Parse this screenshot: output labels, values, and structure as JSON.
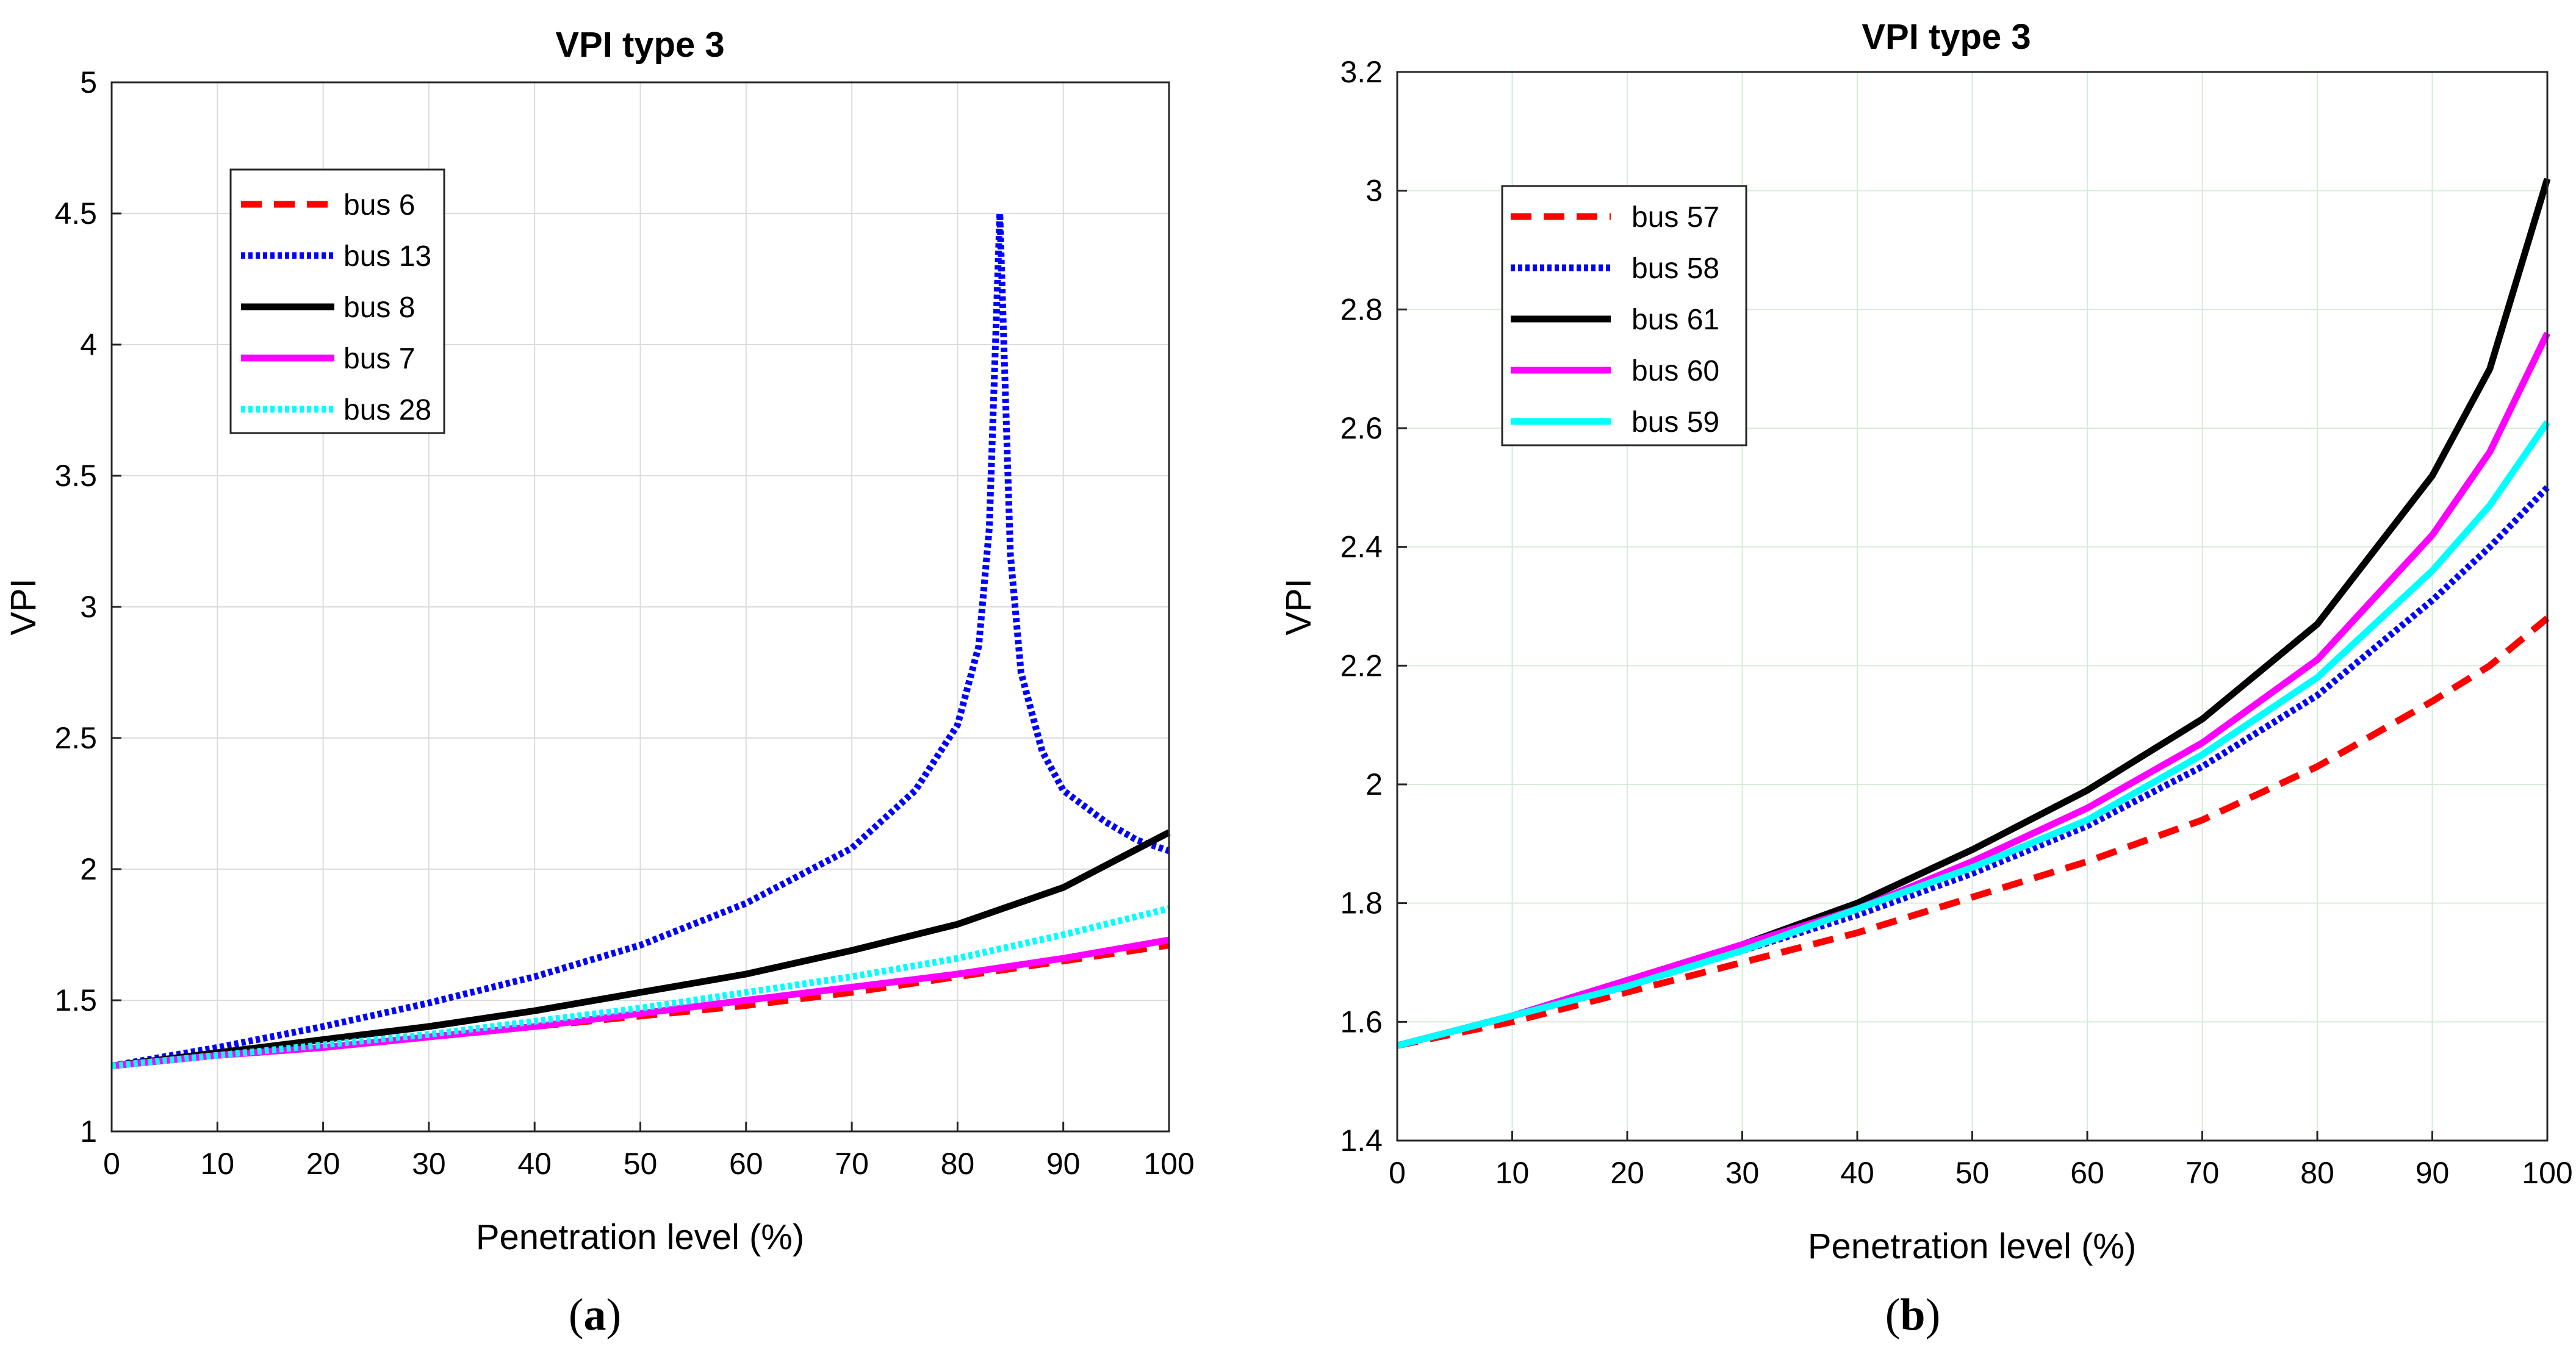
{
  "chart_data": [
    {
      "type": "line",
      "panel_label": "(a)",
      "panel_letter": "a",
      "title": "VPI type 3",
      "xlabel": "Penetration level (%)",
      "ylabel": "VPI",
      "xlim": [
        0,
        100
      ],
      "ylim": [
        1,
        5
      ],
      "xticks": [
        0,
        10,
        20,
        30,
        40,
        50,
        60,
        70,
        80,
        90,
        100
      ],
      "yticks": [
        1,
        1.5,
        2,
        2.5,
        3,
        3.5,
        4,
        4.5,
        5
      ],
      "grid": true,
      "legend_position": "top-left",
      "x": [
        0,
        10,
        20,
        30,
        40,
        50,
        60,
        70,
        80,
        90,
        100
      ],
      "series": [
        {
          "name": "bus 6",
          "color": "#ff0000",
          "style": "dashed",
          "values": [
            1.25,
            1.29,
            1.32,
            1.36,
            1.4,
            1.44,
            1.48,
            1.53,
            1.59,
            1.65,
            1.71
          ]
        },
        {
          "name": "bus 13",
          "color": "#0000ff",
          "style": "dotted",
          "points": [
            [
              0,
              1.25
            ],
            [
              10,
              1.32
            ],
            [
              20,
              1.4
            ],
            [
              30,
              1.49
            ],
            [
              40,
              1.59
            ],
            [
              50,
              1.71
            ],
            [
              60,
              1.87
            ],
            [
              70,
              2.08
            ],
            [
              76,
              2.3
            ],
            [
              80,
              2.55
            ],
            [
              82,
              2.85
            ],
            [
              83,
              3.3
            ],
            [
              84,
              4.5
            ],
            [
              85,
              3.2
            ],
            [
              86,
              2.75
            ],
            [
              88,
              2.45
            ],
            [
              90,
              2.3
            ],
            [
              94,
              2.18
            ],
            [
              97,
              2.11
            ],
            [
              100,
              2.07
            ]
          ]
        },
        {
          "name": "bus 8",
          "color": "#000000",
          "style": "solid",
          "values": [
            1.25,
            1.3,
            1.35,
            1.4,
            1.46,
            1.53,
            1.6,
            1.69,
            1.79,
            1.93,
            2.14
          ]
        },
        {
          "name": "bus 7",
          "color": "#ff00ff",
          "style": "solid",
          "values": [
            1.25,
            1.29,
            1.32,
            1.36,
            1.4,
            1.45,
            1.5,
            1.55,
            1.6,
            1.66,
            1.73
          ]
        },
        {
          "name": "bus 28",
          "color": "#00ffff",
          "style": "dotted",
          "values": [
            1.25,
            1.29,
            1.33,
            1.37,
            1.42,
            1.47,
            1.53,
            1.59,
            1.66,
            1.75,
            1.85
          ]
        }
      ]
    },
    {
      "type": "line",
      "panel_label": "(b)",
      "panel_letter": "b",
      "title": "VPI type 3",
      "xlabel": "Penetration level (%)",
      "ylabel": "VPI",
      "xlim": [
        0,
        100
      ],
      "ylim": [
        1.4,
        3.2
      ],
      "xticks": [
        0,
        10,
        20,
        30,
        40,
        50,
        60,
        70,
        80,
        90,
        100
      ],
      "yticks": [
        1.4,
        1.6,
        1.8,
        2,
        2.2,
        2.4,
        2.6,
        2.8,
        3,
        3.2
      ],
      "grid": true,
      "legend_position": "top-left",
      "x": [
        0,
        10,
        20,
        30,
        40,
        50,
        60,
        70,
        80,
        90,
        95,
        100
      ],
      "series": [
        {
          "name": "bus 57",
          "color": "#ff0000",
          "style": "dashed",
          "values": [
            1.56,
            1.6,
            1.65,
            1.7,
            1.75,
            1.81,
            1.87,
            1.94,
            2.03,
            2.14,
            2.2,
            2.28
          ]
        },
        {
          "name": "bus 58",
          "color": "#0000ff",
          "style": "dotted",
          "values": [
            1.56,
            1.61,
            1.66,
            1.72,
            1.78,
            1.85,
            1.93,
            2.03,
            2.15,
            2.31,
            2.4,
            2.5
          ]
        },
        {
          "name": "bus 61",
          "color": "#000000",
          "style": "solid",
          "values": [
            1.56,
            1.61,
            1.67,
            1.73,
            1.8,
            1.89,
            1.99,
            2.11,
            2.27,
            2.52,
            2.7,
            3.02
          ]
        },
        {
          "name": "bus 60",
          "color": "#ff00ff",
          "style": "solid",
          "values": [
            1.56,
            1.61,
            1.67,
            1.73,
            1.79,
            1.87,
            1.96,
            2.07,
            2.21,
            2.42,
            2.56,
            2.76
          ]
        },
        {
          "name": "bus 59",
          "color": "#00ffff",
          "style": "solid",
          "values": [
            1.56,
            1.61,
            1.66,
            1.72,
            1.79,
            1.86,
            1.94,
            2.05,
            2.18,
            2.36,
            2.47,
            2.61
          ]
        }
      ]
    }
  ]
}
